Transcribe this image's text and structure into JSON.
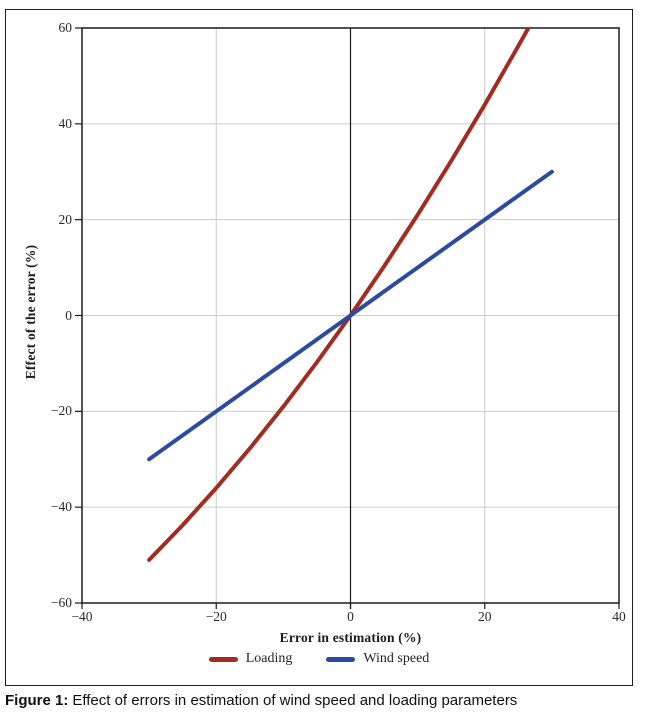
{
  "figure": {
    "caption_prefix": "Figure 1:",
    "caption_text": "Effect of errors in estimation of wind speed and loading parameters"
  },
  "chart_data": {
    "type": "line",
    "title": "",
    "xlabel": "Error in estimation (%)",
    "ylabel": "Effect of the error (%)",
    "xlim": [
      -40,
      40
    ],
    "ylim": [
      -60,
      60
    ],
    "grid": true,
    "grid_color": "#cccccc",
    "axis_color": "#1a1a1a",
    "zero_line_x": 0,
    "xticks": {
      "values": [
        -40,
        -20,
        0,
        20,
        40
      ],
      "labels": [
        "−40",
        "−20",
        "0",
        "20",
        "40"
      ]
    },
    "yticks": {
      "values": [
        60,
        40,
        20,
        0,
        -20,
        -40,
        -60
      ],
      "labels": [
        "60",
        "40",
        "20",
        "0",
        "−20",
        "−40",
        "−60"
      ]
    },
    "legend": {
      "position": "bottom",
      "entries": [
        {
          "label": "Loading",
          "color": "#a32c22"
        },
        {
          "label": "Wind speed",
          "color": "#2b4b9e"
        }
      ]
    },
    "series": [
      {
        "name": "Loading",
        "color": "#a32c22",
        "line_width": 4,
        "x": [
          -30,
          -25,
          -20,
          -15,
          -10,
          -5,
          0,
          5,
          10,
          15,
          20,
          25,
          26.5
        ],
        "y": [
          -51,
          -43.75,
          -36,
          -27.75,
          -19,
          -9.75,
          0,
          10.25,
          21,
          32.25,
          44,
          56.25,
          60
        ]
      },
      {
        "name": "Wind speed",
        "color": "#2b4b9e",
        "line_width": 4,
        "x": [
          -30,
          0,
          30
        ],
        "y": [
          -30,
          0,
          30
        ]
      }
    ]
  }
}
